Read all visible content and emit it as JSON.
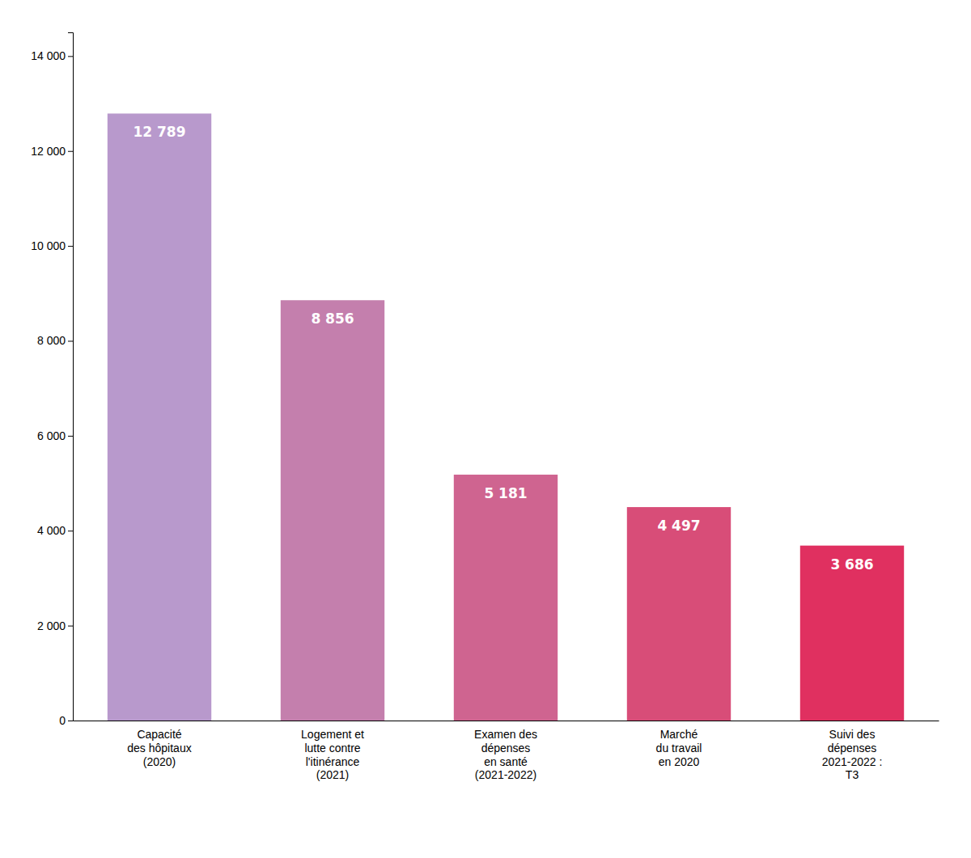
{
  "chart_data": {
    "type": "bar",
    "categories": [
      "Capacité\ndes hôpitaux\n(2020)",
      "Logement et\nlutte contre\nl'itinérance\n(2021)",
      "Examen des\ndépenses\nen santé\n(2021-2022)",
      "Marché\ndu travail\nen 2020",
      "Suivi des\ndépenses\n2021-2022 :\nT3"
    ],
    "values": [
      12789,
      8856,
      5181,
      4497,
      3686
    ],
    "value_labels": [
      "12 789",
      "8 856",
      "5 181",
      "4 497",
      "3 686"
    ],
    "colors": [
      "#b899cc",
      "#c47fad",
      "#cf6490",
      "#d84d78",
      "#e03060"
    ],
    "data_labels": true,
    "ylim": [
      0,
      14500
    ],
    "yticks": [
      0,
      {
        "value": 2000,
        "label": "2 000"
      },
      {
        "value": 4000,
        "label": "4 000"
      },
      {
        "value": 6000,
        "label": "6 000"
      },
      {
        "value": 8000,
        "label": "8 000"
      },
      {
        "value": 10000,
        "label": "10 000"
      },
      {
        "value": 12000,
        "label": "12 000"
      },
      {
        "value": 14000,
        "label": "14 000"
      }
    ],
    "grid": false
  }
}
